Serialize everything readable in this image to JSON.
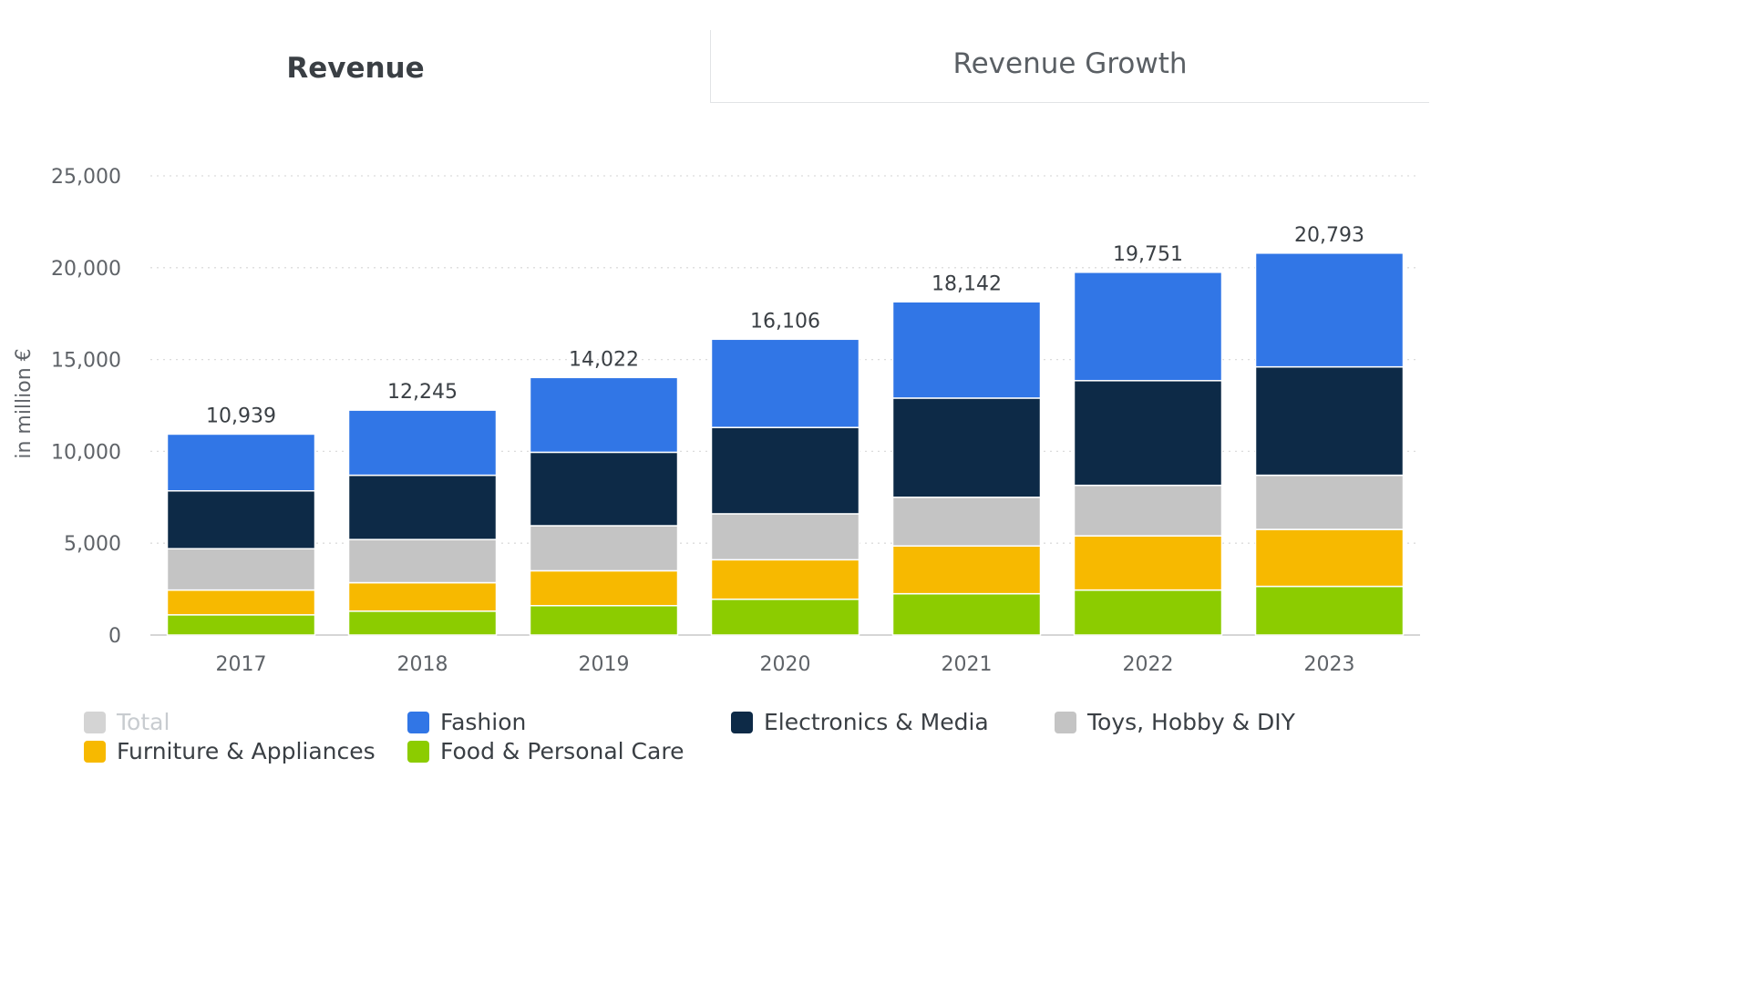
{
  "tabs": [
    {
      "label": "Revenue",
      "active": true
    },
    {
      "label": "Revenue Growth",
      "active": false
    }
  ],
  "chart_data": {
    "type": "bar",
    "stacked": true,
    "categories": [
      "2017",
      "2018",
      "2019",
      "2020",
      "2021",
      "2022",
      "2023"
    ],
    "series": [
      {
        "name": "Food & Personal Care",
        "color": "#8ccc00",
        "values": [
          1100,
          1300,
          1600,
          1950,
          2250,
          2450,
          2650
        ]
      },
      {
        "name": "Furniture & Appliances",
        "color": "#f7b900",
        "values": [
          1350,
          1550,
          1900,
          2150,
          2600,
          2950,
          3100
        ]
      },
      {
        "name": "Toys, Hobby & DIY",
        "color": "#c4c4c4",
        "values": [
          2250,
          2350,
          2450,
          2500,
          2650,
          2750,
          2950
        ]
      },
      {
        "name": "Electronics & Media",
        "color": "#0d2a47",
        "values": [
          3150,
          3500,
          4000,
          4700,
          5400,
          5700,
          5900
        ]
      },
      {
        "name": "Fashion",
        "color": "#3176e6",
        "values": [
          3089,
          3545,
          4072,
          4806,
          5242,
          5901,
          6193
        ]
      }
    ],
    "totals": [
      "10,939",
      "12,245",
      "14,022",
      "16,106",
      "18,142",
      "19,751",
      "20,793"
    ],
    "ylabel": "in million €",
    "ylim": [
      0,
      25000
    ],
    "yticks": [
      0,
      5000,
      10000,
      15000,
      20000,
      25000
    ],
    "ytick_labels": [
      "0",
      "5,000",
      "10,000",
      "15,000",
      "20,000",
      "25,000"
    ],
    "grid": true,
    "legend": {
      "placement": "bottom",
      "items": [
        {
          "label": "Total",
          "color": "#d4d4d4",
          "inactive": true
        },
        {
          "label": "Fashion",
          "color": "#3176e6"
        },
        {
          "label": "Electronics & Media",
          "color": "#0d2a47"
        },
        {
          "label": "Toys, Hobby & DIY",
          "color": "#c4c4c4"
        },
        {
          "label": "Furniture & Appliances",
          "color": "#f7b900"
        },
        {
          "label": "Food & Personal Care",
          "color": "#8ccc00"
        }
      ]
    }
  }
}
